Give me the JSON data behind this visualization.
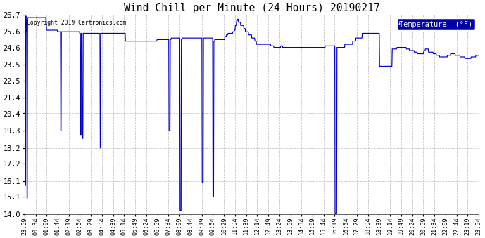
{
  "title": "Wind Chill per Minute (24 Hours) 20190217",
  "copyright_text": "Copyright 2019 Cartronics.com",
  "legend_label": "Temperature  (°F)",
  "line_color": "#0000cc",
  "background_color": "#ffffff",
  "grid_color": "#b0b0b0",
  "legend_bg": "#0000aa",
  "legend_fg": "#ffffff",
  "ylim": [
    14.0,
    26.7
  ],
  "yticks": [
    14.0,
    15.1,
    16.1,
    17.2,
    18.2,
    19.3,
    20.4,
    21.4,
    22.5,
    23.5,
    24.6,
    25.6,
    26.7
  ],
  "xtick_labels": [
    "23:59",
    "00:34",
    "01:09",
    "01:44",
    "02:19",
    "02:54",
    "03:29",
    "04:04",
    "04:39",
    "05:14",
    "05:49",
    "06:24",
    "06:59",
    "07:34",
    "08:09",
    "08:44",
    "09:19",
    "09:54",
    "10:29",
    "11:04",
    "11:39",
    "12:14",
    "12:49",
    "13:24",
    "13:59",
    "14:34",
    "15:09",
    "15:44",
    "16:19",
    "16:54",
    "17:29",
    "18:04",
    "18:39",
    "19:14",
    "19:49",
    "20:24",
    "20:59",
    "21:34",
    "22:09",
    "22:44",
    "23:19",
    "23:54"
  ],
  "num_points": 1440
}
